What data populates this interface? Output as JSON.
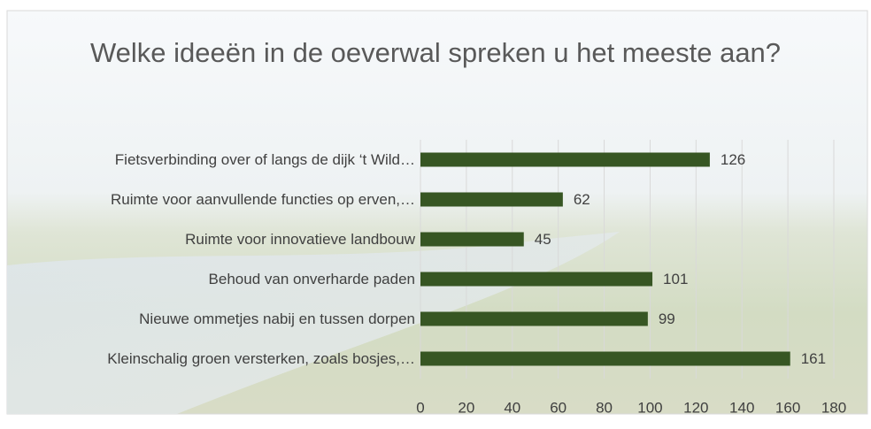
{
  "chart_data": {
    "type": "bar",
    "orientation": "horizontal",
    "title": "Welke ideeën in de oeverwal spreken u het meeste aan?",
    "categories": [
      "Fietsverbinding over of langs de dijk ‘t Wild…",
      "Ruimte voor aanvullende functies op erven,…",
      "Ruimte voor innovatieve landbouw",
      "Behoud van onverharde paden",
      "Nieuwe ommetjes nabij en tussen dorpen",
      "Kleinschalig groen versterken, zoals bosjes,…"
    ],
    "values": [
      126,
      62,
      45,
      101,
      99,
      161
    ],
    "color": "#375623",
    "xlim": [
      0,
      180
    ],
    "xticks": [
      0,
      20,
      40,
      60,
      80,
      100,
      120,
      140,
      160,
      180
    ],
    "grid": true
  }
}
